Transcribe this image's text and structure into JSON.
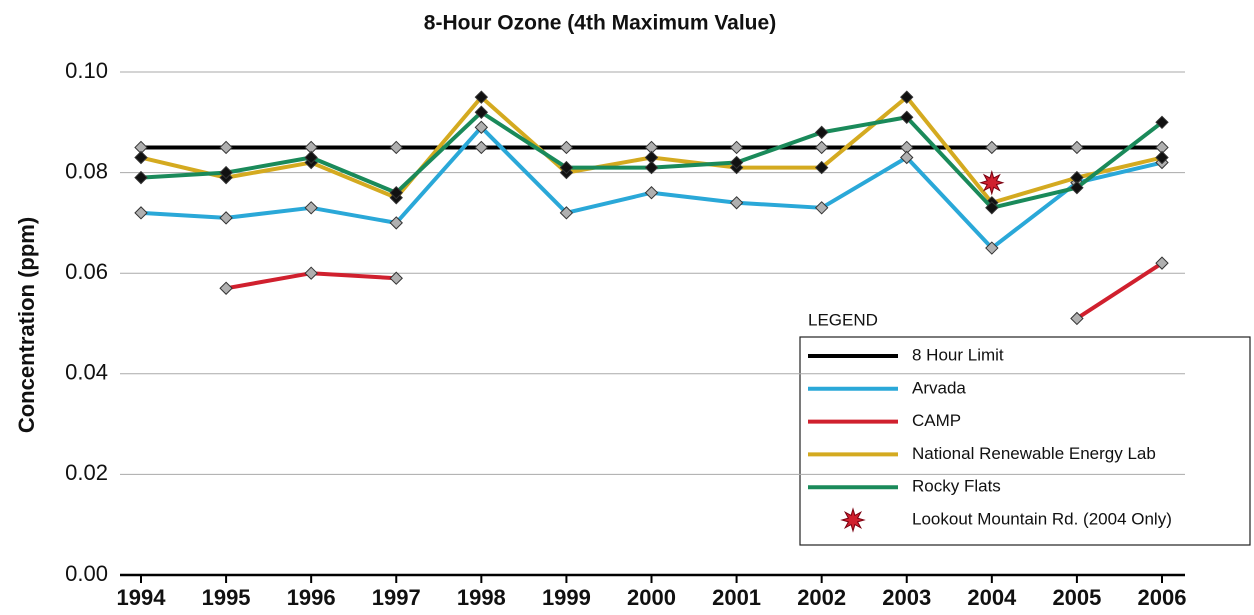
{
  "chart_data": {
    "type": "line",
    "title": "8-Hour Ozone (4th Maximum Value)",
    "y_label": "Concentration (ppm)",
    "legend_title": "LEGEND",
    "categories": [
      "1994",
      "1995",
      "1996",
      "1997",
      "1998",
      "1999",
      "2000",
      "2001",
      "2002",
      "2003",
      "2004",
      "2005",
      "2006"
    ],
    "ylim": [
      0,
      0.1
    ],
    "yticks": [
      {
        "value": 0,
        "label": "0.00"
      },
      0.02,
      0.04,
      0.06,
      0.08,
      {
        "value": 0.1,
        "label": "0.10"
      }
    ],
    "grid": true,
    "legend_position": "lower right",
    "series": [
      {
        "name": "8 Hour Limit",
        "color": "#000000",
        "marker_color": "#b0b0b0",
        "values": [
          0.085,
          0.085,
          0.085,
          0.085,
          0.085,
          0.085,
          0.085,
          0.085,
          0.085,
          0.085,
          0.085,
          0.085,
          0.085
        ]
      },
      {
        "name": "Arvada",
        "color": "#2aa8d8",
        "marker_color": "#b0b0b0",
        "values": [
          0.072,
          0.071,
          0.073,
          0.07,
          0.089,
          0.072,
          0.076,
          0.074,
          0.073,
          0.083,
          0.065,
          0.078,
          0.082
        ]
      },
      {
        "name": "CAMP",
        "color": "#d0202e",
        "marker_color": "#b0b0b0",
        "values": [
          null,
          0.057,
          0.06,
          0.059,
          null,
          null,
          null,
          null,
          null,
          null,
          null,
          0.051,
          0.062
        ]
      },
      {
        "name": "National Renewable Energy Lab",
        "color": "#d4aa20",
        "marker_color": "#111111",
        "values": [
          0.083,
          0.079,
          0.082,
          0.075,
          0.095,
          0.08,
          0.083,
          0.081,
          0.081,
          0.095,
          0.074,
          0.079,
          0.083
        ]
      },
      {
        "name": "Rocky Flats",
        "color": "#1a8a5a",
        "marker_color": "#111111",
        "values": [
          0.079,
          0.08,
          0.083,
          0.076,
          0.092,
          0.081,
          0.081,
          0.082,
          0.088,
          0.091,
          0.073,
          0.077,
          0.09
        ]
      },
      {
        "name": "Lookout Mountain Rd. (2004 Only)",
        "color": "#d0202e",
        "marker": "star",
        "values": [
          null,
          null,
          null,
          null,
          null,
          null,
          null,
          null,
          null,
          null,
          0.078,
          null,
          null
        ]
      }
    ]
  }
}
